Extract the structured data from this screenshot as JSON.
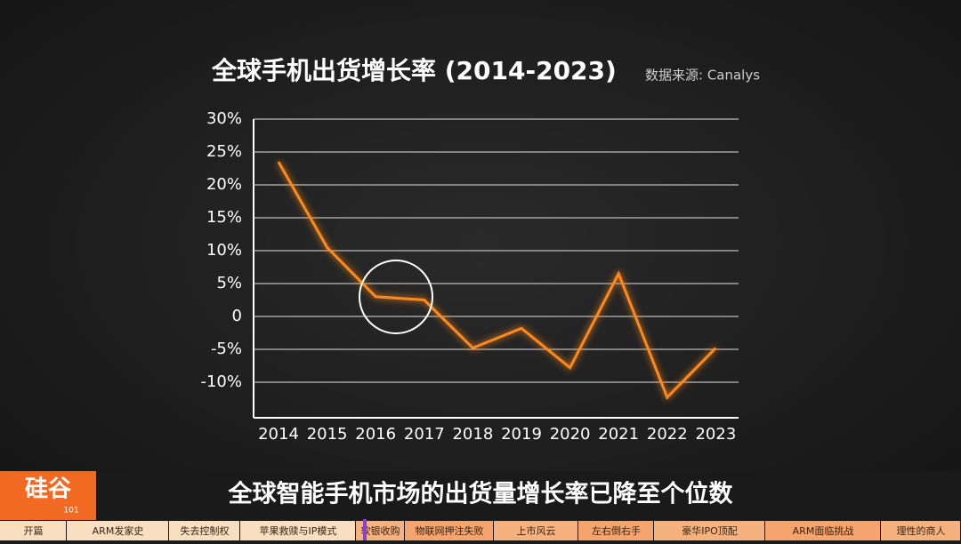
{
  "chart_data": {
    "type": "line",
    "title": "全球手机出货增长率 (2014-2023)",
    "subtitle": "数据来源: Canalys",
    "categories": [
      "2014",
      "2015",
      "2016",
      "2017",
      "2018",
      "2019",
      "2020",
      "2021",
      "2022",
      "2023"
    ],
    "values": [
      23.5,
      10.5,
      3,
      2.5,
      -4.8,
      -1.8,
      -7.8,
      6.5,
      -12.3,
      -4.8
    ],
    "color": "#ff8a1c",
    "grid": true,
    "ylim": [
      -15,
      30
    ],
    "yticks": [
      {
        "value": 30,
        "label": "30%"
      },
      {
        "value": 25,
        "label": "25%"
      },
      {
        "value": 20,
        "label": "20%"
      },
      {
        "value": 15,
        "label": "15%"
      },
      {
        "value": 10,
        "label": "10%"
      },
      {
        "value": 5,
        "label": "5%"
      },
      0,
      {
        "value": -5,
        "label": "-5%"
      },
      {
        "value": -10,
        "label": "-10%"
      }
    ]
  },
  "caption": "全球智能手机市场的出货量增长率已降至个位数",
  "logo": {
    "text": "硅谷",
    "number": "101"
  },
  "nav": [
    "开篇",
    "ARM发家史",
    "失去控制权",
    "苹果救赎与IP模式",
    "软银收购",
    "物联网押注失败",
    "上市风云",
    "左右倒右手",
    "豪华IPO顶配",
    "ARM面临挑战",
    "理性的商人"
  ]
}
